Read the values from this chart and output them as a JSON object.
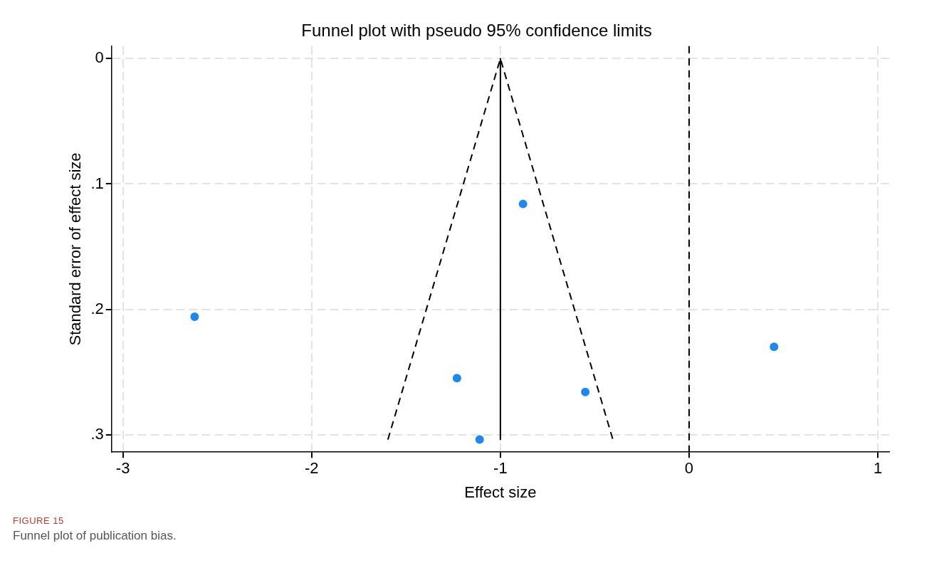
{
  "chart_data": {
    "type": "scatter",
    "title": "Funnel plot with pseudo 95% confidence limits",
    "xlabel": "Effect size",
    "ylabel": "Standard error of effect size",
    "xlim": [
      -3.06,
      1.06
    ],
    "xticks": [
      -3,
      -2,
      -1,
      0,
      1
    ],
    "ylim": [
      0.314,
      -0.01
    ],
    "yticks": [
      {
        "value": 0,
        "label": "0"
      },
      {
        "value": 0.1,
        "label": ".1"
      },
      {
        "value": 0.2,
        "label": ".2"
      },
      {
        "value": 0.3,
        "label": ".3"
      }
    ],
    "grid": true,
    "legend": false,
    "series": [
      {
        "type": "scatter",
        "color": "#1e88f0",
        "marker": "circle",
        "x": [
          -0.88,
          -2.62,
          0.45,
          -1.23,
          -0.55,
          -1.11
        ],
        "values": [
          0.116,
          0.206,
          0.23,
          0.255,
          0.266,
          0.304
        ]
      },
      {
        "type": "line",
        "color": "#000000",
        "marker": "none",
        "line_style": "dashed",
        "x": [
          -1.596,
          -1,
          -0.404
        ],
        "values": [
          0.304,
          0,
          0.304
        ]
      },
      {
        "type": "line",
        "color": "#000000",
        "marker": "none",
        "line_style": "solid",
        "x": [
          -1,
          -1
        ],
        "values": [
          0,
          0.304
        ]
      }
    ],
    "ref_lines": [
      {
        "axis": "x",
        "value": 0,
        "label": null,
        "color": "#000000",
        "line_style": "dashed"
      }
    ],
    "annotations": [
      "FIGURE 15",
      "Funnel plot of publication bias."
    ]
  }
}
